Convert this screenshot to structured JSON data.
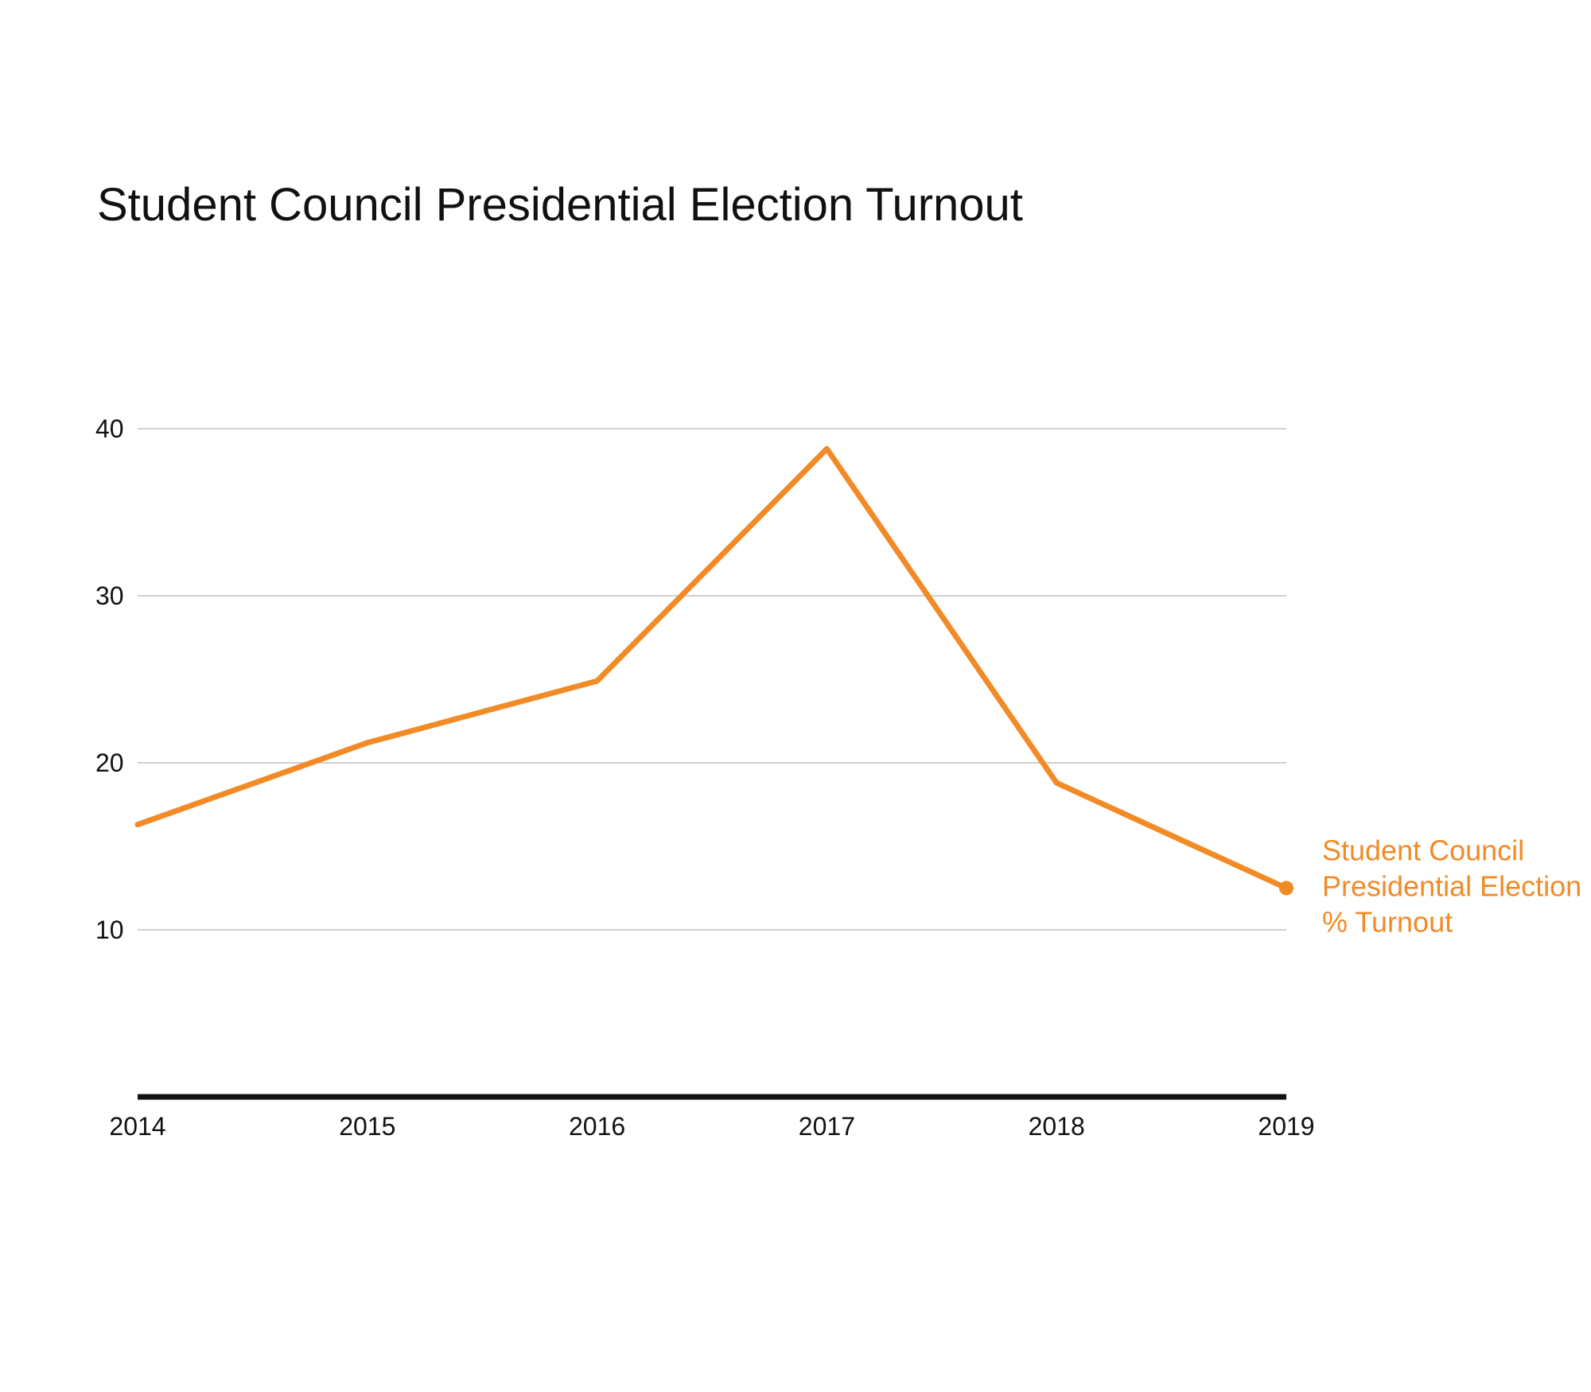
{
  "chart_data": {
    "type": "line",
    "title": "Student Council Presidential Election Turnout",
    "xlabel": "",
    "ylabel": "",
    "x": [
      "2014",
      "2015",
      "2016",
      "2017",
      "2018",
      "2019"
    ],
    "series": [
      {
        "name": "Student Council Presidential Election % Turnout",
        "name_lines": [
          "Student Council",
          "Presidential Election",
          "% Turnout"
        ],
        "values": [
          16.3,
          21.2,
          24.9,
          38.8,
          18.8,
          12.5
        ],
        "color": "#f28a25",
        "end_marker": true
      }
    ],
    "y_ticks": [
      10,
      20,
      30,
      40
    ],
    "ylim": [
      0,
      40
    ],
    "grid": true,
    "grid_color": "#cfcfcf",
    "axis_color": "#111111",
    "legend": "inline-end-label"
  }
}
